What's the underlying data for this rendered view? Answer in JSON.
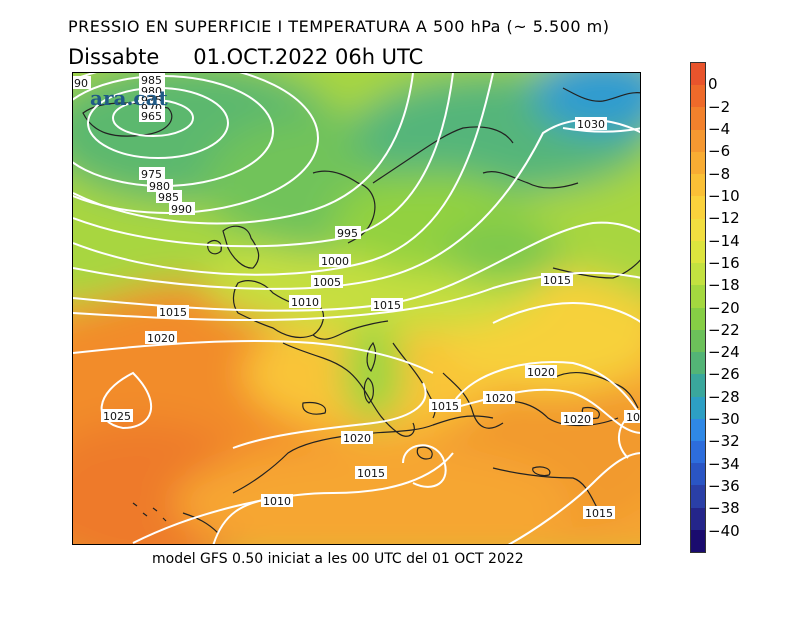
{
  "header": {
    "title": "PRESSIO EN SUPERFICIE I TEMPERATURA A 500 hPa (~ 5.500 m)",
    "day": "Dissabte",
    "datetime": "01.OCT.2022 06h UTC"
  },
  "footer": {
    "caption": "model GFS 0.50 iniciat a les 00 UTC del 01 OCT 2022"
  },
  "logo": {
    "text": "ara.cat"
  },
  "legend": {
    "ticks": [
      "0",
      "−2",
      "−4",
      "−6",
      "−8",
      "−10",
      "−12",
      "−14",
      "−16",
      "−18",
      "−20",
      "−22",
      "−24",
      "−26",
      "−28",
      "−30",
      "−32",
      "−34",
      "−36",
      "−38",
      "−40"
    ],
    "colors": [
      "#e8542c",
      "#ee6a2a",
      "#f2812c",
      "#f59831",
      "#f8ac33",
      "#fac036",
      "#fad23c",
      "#f2de40",
      "#dde43e",
      "#c3e140",
      "#a4d83f",
      "#86ce45",
      "#6cc15a",
      "#53b476",
      "#3aa79c",
      "#2d9fc4",
      "#2f88e6",
      "#2d6ddc",
      "#2a55c4",
      "#2a3fa7",
      "#24258a",
      "#1a0b6e"
    ]
  },
  "isobars": [
    {
      "id": "l-985a",
      "text": "985"
    },
    {
      "id": "l-980a",
      "text": "980"
    },
    {
      "id": "l-975a",
      "text": "975"
    },
    {
      "id": "l-970",
      "text": "970"
    },
    {
      "id": "l-965",
      "text": "965"
    },
    {
      "id": "l-975",
      "text": "975"
    },
    {
      "id": "l-980",
      "text": "980"
    },
    {
      "id": "l-985",
      "text": "985"
    },
    {
      "id": "l-990",
      "text": "990"
    },
    {
      "id": "l-90",
      "text": "90"
    },
    {
      "id": "l-995",
      "text": "995"
    },
    {
      "id": "l-1000",
      "text": "1000"
    },
    {
      "id": "l-1005",
      "text": "1005"
    },
    {
      "id": "l-1010",
      "text": "1010"
    },
    {
      "id": "l-1015a",
      "text": "1015"
    },
    {
      "id": "l-1015b",
      "text": "1015"
    },
    {
      "id": "l-1020a",
      "text": "1020"
    },
    {
      "id": "l-1025",
      "text": "1025"
    },
    {
      "id": "l-1015c",
      "text": "1015"
    },
    {
      "id": "l-1020b",
      "text": "1020"
    },
    {
      "id": "l-1015d",
      "text": "1015"
    },
    {
      "id": "l-1010b",
      "text": "1010"
    },
    {
      "id": "l-1015e",
      "text": "1015"
    },
    {
      "id": "l-1020c",
      "text": "1020"
    },
    {
      "id": "l-1020d",
      "text": "1020"
    },
    {
      "id": "l-1020e",
      "text": "1020"
    },
    {
      "id": "l-1030",
      "text": "1030"
    },
    {
      "id": "l-1015f",
      "text": "1015"
    },
    {
      "id": "l-10",
      "text": "10"
    }
  ]
}
